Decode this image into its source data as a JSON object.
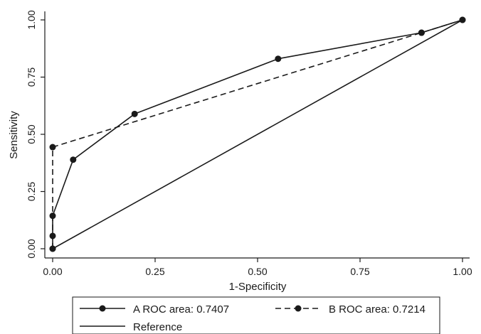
{
  "chart_data": {
    "type": "line",
    "title": "",
    "xlabel": "1-Specificity",
    "ylabel": "Sensitivity",
    "xlim": [
      0,
      1
    ],
    "ylim": [
      0,
      1
    ],
    "xticks": [
      "0.00",
      "0.25",
      "0.50",
      "0.75",
      "1.00"
    ],
    "yticks": [
      "0.00",
      "0.25",
      "0.50",
      "0.75",
      "1.00"
    ],
    "grid": false,
    "legend_position": "bottom",
    "series": [
      {
        "name": "A ROC area: 0.7407",
        "style": "solid",
        "markers": true,
        "color": "#1a1a1a",
        "x": [
          0,
          0,
          0,
          0.05,
          0.2,
          0.55,
          0.9,
          1
        ],
        "y": [
          0,
          0.056,
          0.144,
          0.389,
          0.589,
          0.83,
          0.944,
          1
        ]
      },
      {
        "name": "B ROC area: 0.7214",
        "style": "dashed",
        "markers": true,
        "color": "#1a1a1a",
        "x": [
          0,
          0,
          0.9,
          1
        ],
        "y": [
          0,
          0.444,
          0.944,
          1
        ]
      },
      {
        "name": "Reference",
        "style": "solid",
        "markers": false,
        "color": "#1a1a1a",
        "x": [
          0,
          1
        ],
        "y": [
          0,
          1
        ]
      }
    ]
  }
}
